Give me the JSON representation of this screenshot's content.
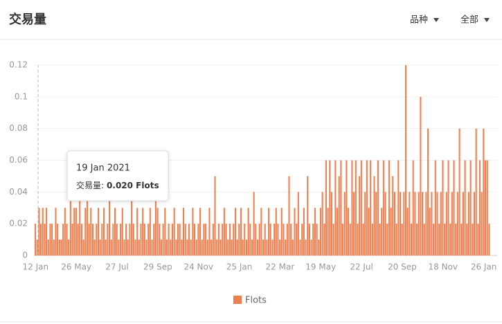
{
  "header": {
    "title": "交易量",
    "filters": [
      "品种",
      "全部"
    ]
  },
  "chart_data": {
    "type": "bar",
    "categories": [
      "12 Jan",
      null,
      null,
      null,
      null,
      null,
      null,
      null,
      null,
      null,
      null,
      null,
      null,
      null,
      null,
      null,
      null,
      null,
      null,
      null,
      null,
      null,
      "26 May",
      null,
      null,
      null,
      null,
      null,
      null,
      null,
      null,
      null,
      null,
      null,
      null,
      null,
      null,
      null,
      null,
      null,
      null,
      null,
      null,
      null,
      "27 Jul",
      null,
      null,
      null,
      null,
      null,
      null,
      null,
      null,
      null,
      null,
      null,
      null,
      null,
      null,
      null,
      null,
      null,
      null,
      null,
      null,
      null,
      "29 Sep",
      null,
      null,
      null,
      null,
      null,
      null,
      null,
      null,
      null,
      null,
      null,
      null,
      null,
      null,
      null,
      null,
      null,
      null,
      null,
      null,
      null,
      "24 Nov",
      null,
      null,
      null,
      null,
      null,
      null,
      null,
      null,
      null,
      null,
      null,
      null,
      null,
      null,
      null,
      null,
      null,
      null,
      null,
      null,
      null,
      "25 Jan",
      null,
      null,
      null,
      null,
      null,
      null,
      null,
      null,
      null,
      null,
      null,
      null,
      null,
      null,
      null,
      null,
      null,
      null,
      null,
      null,
      null,
      "22 Mar",
      null,
      null,
      null,
      null,
      null,
      null,
      null,
      null,
      null,
      null,
      null,
      null,
      null,
      null,
      null,
      null,
      null,
      null,
      null,
      null,
      null,
      "19 May",
      null,
      null,
      null,
      null,
      null,
      null,
      null,
      null,
      null,
      null,
      null,
      null,
      null,
      null,
      null,
      null,
      null,
      null,
      null,
      null,
      null,
      "22 Jul",
      null,
      null,
      null,
      null,
      null,
      null,
      null,
      null,
      null,
      null,
      null,
      null,
      null,
      null,
      null,
      null,
      null,
      null,
      null,
      null,
      null,
      "20 Sep",
      null,
      null,
      null,
      null,
      null,
      null,
      null,
      null,
      null,
      null,
      null,
      null,
      null,
      null,
      null,
      null,
      null,
      null,
      null,
      null,
      null,
      "18 Nov",
      null,
      null,
      null,
      null,
      null,
      null,
      null,
      null,
      null,
      null,
      null,
      null,
      null,
      null,
      null,
      null,
      null,
      null,
      null,
      null,
      null,
      "26 Jan",
      null,
      null,
      null
    ],
    "series": [
      {
        "name": "Flots",
        "color": "#f07f4f",
        "values": [
          0.02,
          0.01,
          0.03,
          0.02,
          0.03,
          0.02,
          0.03,
          0.01,
          0.02,
          0.02,
          0.01,
          0.03,
          0.02,
          0.01,
          0.01,
          0.02,
          0.03,
          0.02,
          0.01,
          0.04,
          0.02,
          0.03,
          0.03,
          0.02,
          0.04,
          0.02,
          0.01,
          0.03,
          0.04,
          0.02,
          0.03,
          0.02,
          0.01,
          0.02,
          0.03,
          0.01,
          0.02,
          0.03,
          0.01,
          0.02,
          0.04,
          0.01,
          0.02,
          0.03,
          0.02,
          0.01,
          0.02,
          0.03,
          0.01,
          0.02,
          0.01,
          0.02,
          0.04,
          0.02,
          0.01,
          0.03,
          0.01,
          0.02,
          0.03,
          0.02,
          0.01,
          0.02,
          0.03,
          0.01,
          0.02,
          0.04,
          0.03,
          0.02,
          0.01,
          0.02,
          0.03,
          0.01,
          0.02,
          0.01,
          0.02,
          0.03,
          0.01,
          0.02,
          0.02,
          0.01,
          0.03,
          0.02,
          0.01,
          0.02,
          0.01,
          0.03,
          0.02,
          0.01,
          0.02,
          0.03,
          0.01,
          0.02,
          0.02,
          0.01,
          0.03,
          0.01,
          0.02,
          0.05,
          0.01,
          0.02,
          0.01,
          0.02,
          0.03,
          0.02,
          0.01,
          0.02,
          0.01,
          0.02,
          0.03,
          0.01,
          0.02,
          0.03,
          0.01,
          0.02,
          0.01,
          0.03,
          0.02,
          0.01,
          0.04,
          0.02,
          0.01,
          0.02,
          0.03,
          0.01,
          0.02,
          0.01,
          0.03,
          0.02,
          0.01,
          0.02,
          0.03,
          0.02,
          0.01,
          0.03,
          0.02,
          0.01,
          0.02,
          0.05,
          0.02,
          0.01,
          0.03,
          0.02,
          0.04,
          0.01,
          0.02,
          0.03,
          0.01,
          0.05,
          0.02,
          0.01,
          0.02,
          0.03,
          0.02,
          0.01,
          0.03,
          0.04,
          0.02,
          0.06,
          0.03,
          0.06,
          0.04,
          0.02,
          0.06,
          0.03,
          0.05,
          0.06,
          0.02,
          0.04,
          0.06,
          0.03,
          0.02,
          0.06,
          0.04,
          0.06,
          0.02,
          0.05,
          0.06,
          0.02,
          0.04,
          0.06,
          0.03,
          0.06,
          0.02,
          0.05,
          0.04,
          0.06,
          0.02,
          0.03,
          0.06,
          0.04,
          0.02,
          0.06,
          0.03,
          0.05,
          0.04,
          0.02,
          0.06,
          0.04,
          0.02,
          0.04,
          0.12,
          0.03,
          0.04,
          0.02,
          0.06,
          0.04,
          0.02,
          0.04,
          0.1,
          0.04,
          0.02,
          0.04,
          0.08,
          0.03,
          0.04,
          0.02,
          0.06,
          0.04,
          0.02,
          0.04,
          0.06,
          0.02,
          0.04,
          0.06,
          0.02,
          0.04,
          0.06,
          0.02,
          0.04,
          0.08,
          0.02,
          0.04,
          0.06,
          0.02,
          0.04,
          0.06,
          0.02,
          0.04,
          0.08,
          0.02,
          0.06,
          0.04,
          0.08,
          0.06,
          0.06,
          0.02
        ]
      }
    ],
    "ylim": [
      0,
      0.12
    ],
    "yticks": [
      0,
      0.02,
      0.04,
      0.06,
      0.08,
      0.1,
      0.12
    ],
    "grid": true,
    "tooltip": {
      "date": "19 Jan 2021",
      "label": "交易量:",
      "value": "0.020 Flots"
    }
  }
}
